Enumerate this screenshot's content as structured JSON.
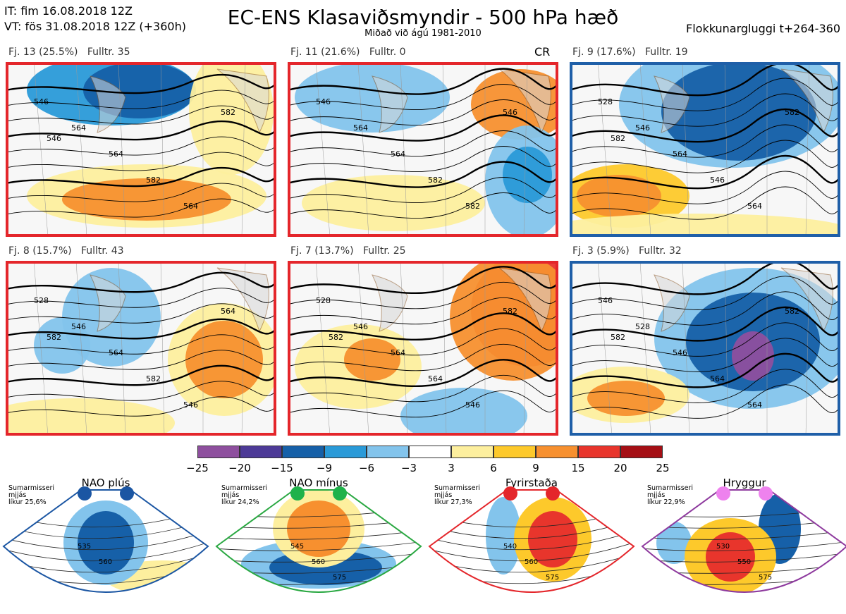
{
  "header": {
    "it_line": "IT: fim 16.08.2018 12Z",
    "vt_line": "VT: fös 31.08.2018 12Z  (+360h)",
    "title": "EC-ENS Klasaviðsmyndir - 500 hPa hæð",
    "subtitle": "Miðað við ágú 1981-2010",
    "window": "Flokkunargluggi t+264-360"
  },
  "clusters": [
    {
      "caption": "Fj. 13 (25.5%)   Fulltr. 35",
      "frame_color": "#e4262b",
      "contours": [
        "546",
        "564",
        "564",
        "582",
        "564",
        "582",
        "546"
      ]
    },
    {
      "caption": "Fj. 11 (21.6%)   Fulltr. 0",
      "frame_color": "#e4262b",
      "mark": "CR",
      "contours": [
        "546",
        "564",
        "564",
        "582",
        "582",
        "546"
      ]
    },
    {
      "caption": "Fj. 9 (17.6%)   Fulltr. 19",
      "frame_color": "#1f5fa8",
      "contours": [
        "528",
        "546",
        "564",
        "546",
        "564",
        "582",
        "582"
      ]
    },
    {
      "caption": "Fj. 8 (15.7%)   Fulltr. 43",
      "frame_color": "#e4262b",
      "contours": [
        "528",
        "546",
        "564",
        "582",
        "546",
        "564",
        "582"
      ]
    },
    {
      "caption": "Fj. 7 (13.7%)   Fulltr. 25",
      "frame_color": "#e4262b",
      "contours": [
        "528",
        "546",
        "564",
        "564",
        "546",
        "582",
        "582"
      ]
    },
    {
      "caption": "Fj. 3 (5.9%)   Fulltr. 32",
      "frame_color": "#1f5fa8",
      "contours": [
        "546",
        "528",
        "546",
        "564",
        "564",
        "582",
        "582"
      ]
    }
  ],
  "colorbar": {
    "colors": [
      "#8e4f9e",
      "#4d3a97",
      "#1660a8",
      "#2a9ad8",
      "#83c4ec",
      "#ffffff",
      "#fdef9e",
      "#fdc92b",
      "#f7902f",
      "#e8352c",
      "#a50f15"
    ],
    "ticks": [
      "−25",
      "−20",
      "−15",
      "−9",
      "−6",
      "−3",
      "3",
      "6",
      "9",
      "15",
      "20",
      "25"
    ]
  },
  "regimes": [
    {
      "title": "NAO plús",
      "note": "Sumarmisseri\nmjjás\nlíkur 25,6%",
      "dot_color": "#1b56a3",
      "line_color": "#1b56a3",
      "labels": [
        "535",
        "560"
      ]
    },
    {
      "title": "NAO mínus",
      "note": "Sumarmisseri\nmjjás\nlíkur 24,2%",
      "dot_color": "#1fb24a",
      "line_color": "#2aa842",
      "labels": [
        "545",
        "560",
        "575"
      ]
    },
    {
      "title": "Fyrirstaða",
      "note": "Sumarmisseri\nmjjás\nlíkur 27,3%",
      "dot_color": "#e4262b",
      "line_color": "#e4262b",
      "labels": [
        "540",
        "560",
        "575"
      ]
    },
    {
      "title": "Hryggur",
      "note": "Sumarmisseri\nmjjás\nlíkur 22,9%",
      "dot_color": "#ee82ee",
      "line_color": "#8e3a9e",
      "labels": [
        "530",
        "550",
        "575"
      ]
    }
  ]
}
